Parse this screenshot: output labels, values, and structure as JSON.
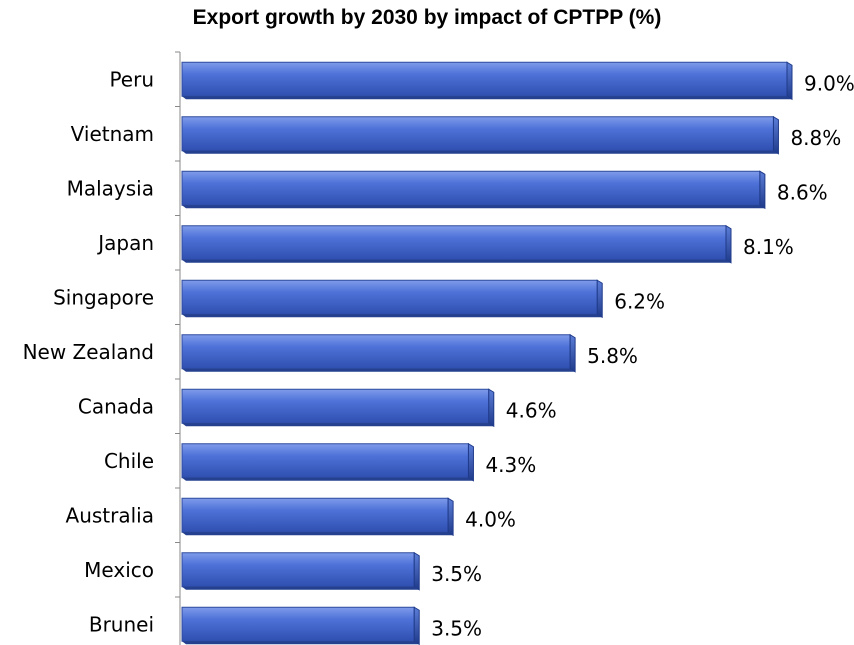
{
  "chart_data": {
    "type": "bar",
    "orientation": "horizontal",
    "title": "Export growth by 2030 by impact of CPTPP (%)",
    "categories": [
      "Peru",
      "Vietnam",
      "Malaysia",
      "Japan",
      "Singapore",
      "New Zealand",
      "Canada",
      "Chile",
      "Australia",
      "Mexico",
      "Brunei"
    ],
    "values": [
      9.0,
      8.8,
      8.6,
      8.1,
      6.2,
      5.8,
      4.6,
      4.3,
      4.0,
      3.5,
      3.5
    ],
    "value_labels": [
      "9.0%",
      "8.8%",
      "8.6%",
      "8.1%",
      "6.2%",
      "5.8%",
      "4.6%",
      "4.3%",
      "4.0%",
      "3.5%",
      "3.5%"
    ],
    "xlim": [
      0,
      9.0
    ],
    "grid": false,
    "bar_color": "#4A6FD4"
  }
}
